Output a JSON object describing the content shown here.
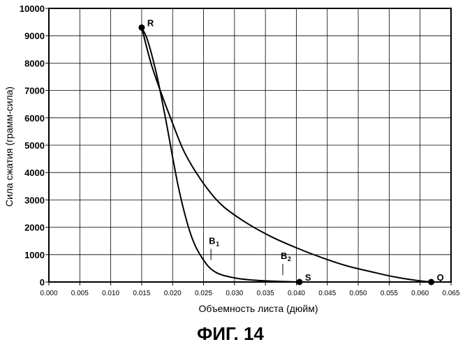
{
  "chart_data": {
    "type": "line",
    "title": "",
    "xlabel": "Объемность листа (дюйм)",
    "ylabel": "Сила сжатия (грамм-сила)",
    "xlim": [
      0.0,
      0.065
    ],
    "ylim": [
      0,
      10000
    ],
    "x_ticks": [
      "0.000",
      "0.005",
      "0.010",
      "0.015",
      "0.020",
      "0.025",
      "0.030",
      "0.035",
      "0.040",
      "0.045",
      "0.050",
      "0.055",
      "0.060",
      "0.065"
    ],
    "y_ticks": [
      "0",
      "1000",
      "2000",
      "3000",
      "4000",
      "5000",
      "6000",
      "7000",
      "8000",
      "9000",
      "10000"
    ],
    "grid": true,
    "series": [
      {
        "x": [
          0.015,
          0.016,
          0.0175,
          0.019,
          0.021,
          0.023,
          0.025,
          0.027,
          0.03,
          0.033,
          0.036,
          0.039,
          0.0405
        ],
        "y": [
          9300,
          8800,
          7500,
          5800,
          3400,
          1700,
          800,
          350,
          150,
          70,
          30,
          10,
          0
        ]
      },
      {
        "x": [
          0.015,
          0.0165,
          0.018,
          0.02,
          0.022,
          0.025,
          0.028,
          0.032,
          0.036,
          0.04,
          0.044,
          0.048,
          0.052,
          0.056,
          0.06,
          0.062
        ],
        "y": [
          9300,
          8000,
          7000,
          5800,
          4700,
          3600,
          2800,
          2150,
          1650,
          1250,
          900,
          600,
          380,
          180,
          40,
          0
        ]
      }
    ],
    "points": [
      {
        "label": "R",
        "x": 0.015,
        "y": 9300
      },
      {
        "label": "S",
        "x": 0.0405,
        "y": 0
      },
      {
        "label": "Q",
        "x": 0.0618,
        "y": 0
      }
    ],
    "annotations": [
      {
        "label": "B",
        "sub": "1",
        "x": 0.0262,
        "y": 700
      },
      {
        "label": "B",
        "sub": "2",
        "x": 0.0378,
        "y": 150
      }
    ]
  },
  "caption": "ФИГ. 14"
}
